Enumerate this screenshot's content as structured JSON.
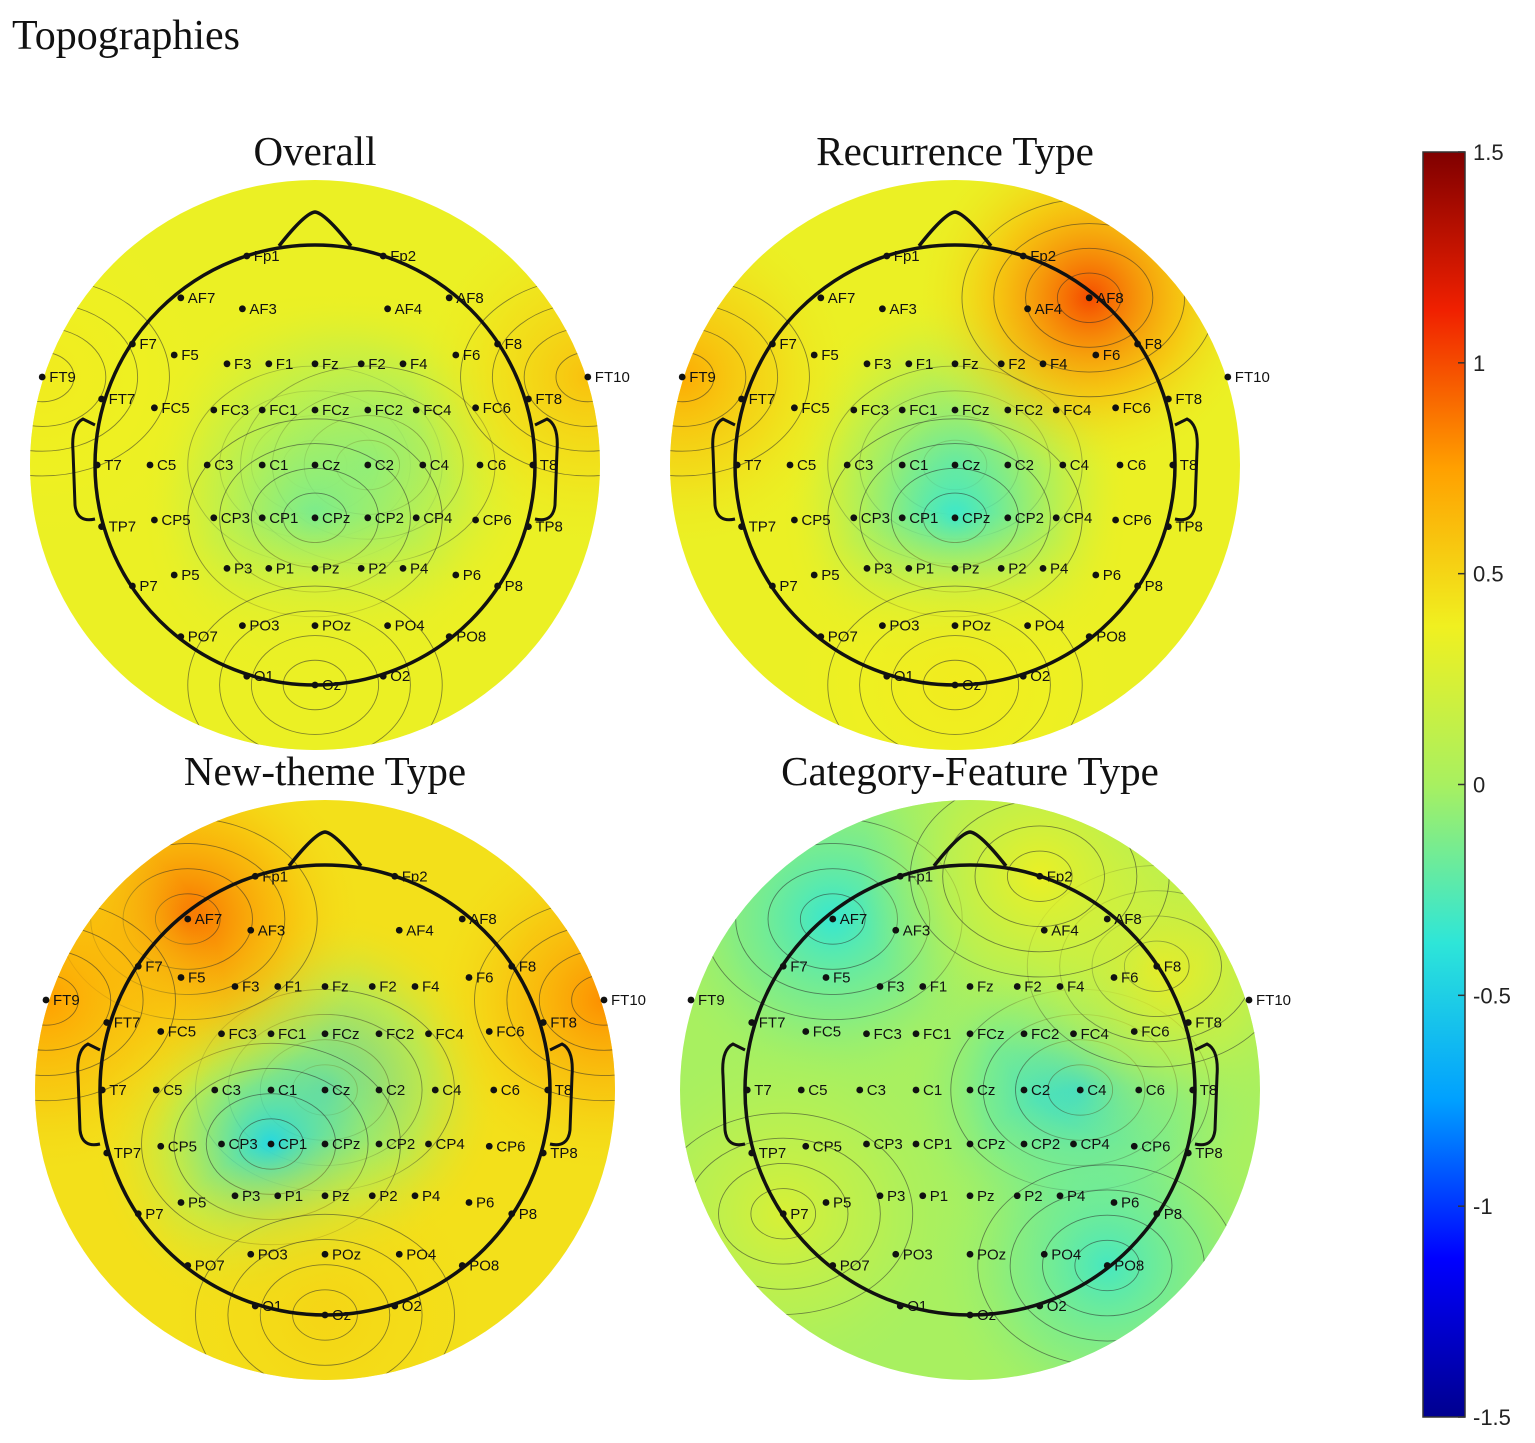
{
  "title": "Topographies",
  "colors": {
    "scale": [
      "#00008f",
      "#0000ff",
      "#00a0ff",
      "#2ee6d8",
      "#a8f060",
      "#f0f020",
      "#ffa000",
      "#f02000",
      "#800000"
    ],
    "outline": "#111111",
    "contour": "#2b2b2b",
    "electrode": "#111111"
  },
  "chart_data": [
    {
      "type": "heatmap",
      "title": "Overall",
      "clim": [
        -1.5,
        1.5
      ],
      "electrodes": [
        "Fp1",
        "Fp2",
        "AF7",
        "AF3",
        "AF4",
        "AF8",
        "F7",
        "F5",
        "F3",
        "F1",
        "Fz",
        "F2",
        "F4",
        "F6",
        "F8",
        "FT9",
        "FT7",
        "FC5",
        "FC3",
        "FC1",
        "FCz",
        "FC2",
        "FC4",
        "FC6",
        "FT8",
        "FT10",
        "T7",
        "C5",
        "C3",
        "C1",
        "Cz",
        "C2",
        "C4",
        "C6",
        "T8",
        "TP7",
        "CP5",
        "CP3",
        "CP1",
        "CPz",
        "CP2",
        "CP4",
        "CP6",
        "TP8",
        "P7",
        "P5",
        "P3",
        "P1",
        "Pz",
        "P2",
        "P4",
        "P6",
        "P8",
        "PO7",
        "PO3",
        "POz",
        "PO4",
        "PO8",
        "O1",
        "Oz",
        "O2"
      ],
      "sources": [
        {
          "v": -0.2,
          "near": "Cz"
        },
        {
          "v": -0.25,
          "near": "C2"
        },
        {
          "v": -0.15,
          "near": "CPz"
        },
        {
          "v": 0.6,
          "near": "FT10"
        },
        {
          "v": 0.4,
          "near": "FT9"
        },
        {
          "v": 0.35,
          "near": "Oz"
        }
      ],
      "base": 0.35
    },
    {
      "type": "heatmap",
      "title": "Recurrence Type",
      "clim": [
        -1.5,
        1.5
      ],
      "electrodes": [
        "Fp1",
        "Fp2",
        "AF7",
        "AF3",
        "AF4",
        "AF8",
        "F7",
        "F5",
        "F3",
        "F1",
        "Fz",
        "F2",
        "F4",
        "F6",
        "F8",
        "FT9",
        "FT7",
        "FC5",
        "FC3",
        "FC1",
        "FCz",
        "FC2",
        "FC4",
        "FC6",
        "FT8",
        "FT10",
        "T7",
        "C5",
        "C3",
        "C1",
        "Cz",
        "C2",
        "C4",
        "C6",
        "T8",
        "TP7",
        "CP5",
        "CP3",
        "CP1",
        "CPz",
        "CP2",
        "CP4",
        "CP6",
        "TP8",
        "P7",
        "P5",
        "P3",
        "P1",
        "Pz",
        "P2",
        "P4",
        "P6",
        "P8",
        "PO7",
        "PO3",
        "POz",
        "PO4",
        "PO8",
        "O1",
        "Oz",
        "O2"
      ],
      "sources": [
        {
          "v": -0.4,
          "near": "Cz"
        },
        {
          "v": -0.35,
          "near": "CPz"
        },
        {
          "v": 1.0,
          "near": "AF8"
        },
        {
          "v": 0.7,
          "near": "FT9"
        },
        {
          "v": 0.4,
          "near": "Oz"
        }
      ],
      "base": 0.35
    },
    {
      "type": "heatmap",
      "title": "New-theme Type",
      "clim": [
        -1.5,
        1.5
      ],
      "electrodes": [
        "Fp1",
        "Fp2",
        "AF7",
        "AF3",
        "AF4",
        "AF8",
        "F7",
        "F5",
        "F3",
        "F1",
        "Fz",
        "F2",
        "F4",
        "F6",
        "F8",
        "FT9",
        "FT7",
        "FC5",
        "FC3",
        "FC1",
        "FCz",
        "FC2",
        "FC4",
        "FC6",
        "FT8",
        "FT10",
        "T7",
        "C5",
        "C3",
        "C1",
        "Cz",
        "C2",
        "C4",
        "C6",
        "T8",
        "TP7",
        "CP5",
        "CP3",
        "CP1",
        "CPz",
        "CP2",
        "CP4",
        "CP6",
        "TP8",
        "P7",
        "P5",
        "P3",
        "P1",
        "Pz",
        "P2",
        "P4",
        "P6",
        "P8",
        "PO7",
        "PO3",
        "POz",
        "PO4",
        "PO8",
        "O1",
        "Oz",
        "O2"
      ],
      "sources": [
        {
          "v": -0.6,
          "near": "Cz"
        },
        {
          "v": -0.45,
          "near": "CP1"
        },
        {
          "v": 0.9,
          "near": "AF7"
        },
        {
          "v": 0.8,
          "near": "FT10"
        },
        {
          "v": 0.75,
          "near": "FT9"
        },
        {
          "v": 0.5,
          "near": "Oz"
        }
      ],
      "base": 0.45
    },
    {
      "type": "heatmap",
      "title": "Category-Feature Type",
      "clim": [
        -1.5,
        1.5
      ],
      "electrodes": [
        "Fp1",
        "Fp2",
        "AF7",
        "AF3",
        "AF4",
        "AF8",
        "F7",
        "F5",
        "F3",
        "F1",
        "Fz",
        "F2",
        "F4",
        "F6",
        "F8",
        "FT9",
        "FT7",
        "FC5",
        "FC3",
        "FC1",
        "FCz",
        "FC2",
        "FC4",
        "FC6",
        "FT8",
        "FT10",
        "T7",
        "C5",
        "C3",
        "C1",
        "Cz",
        "C2",
        "C4",
        "C6",
        "T8",
        "TP7",
        "CP5",
        "CP3",
        "CP1",
        "CPz",
        "CP2",
        "CP4",
        "CP6",
        "TP8",
        "P7",
        "P5",
        "P3",
        "P1",
        "Pz",
        "P2",
        "P4",
        "P6",
        "P8",
        "PO7",
        "PO3",
        "POz",
        "PO4",
        "PO8",
        "O1",
        "Oz",
        "O2"
      ],
      "sources": [
        {
          "v": -0.45,
          "near": "C4"
        },
        {
          "v": -0.35,
          "near": "AF7"
        },
        {
          "v": -0.3,
          "near": "PO8"
        },
        {
          "v": 0.4,
          "near": "F8"
        },
        {
          "v": 0.35,
          "near": "Fp2"
        },
        {
          "v": 0.25,
          "near": "P7"
        }
      ],
      "base": 0.0
    },
    {
      "type": "colorbar",
      "ticks": [
        "1.5",
        "1",
        "0.5",
        "0",
        "-0.5",
        "-1",
        "-1.5"
      ],
      "values": [
        1.5,
        1,
        0.5,
        0,
        -0.5,
        -1,
        -1.5
      ]
    }
  ]
}
